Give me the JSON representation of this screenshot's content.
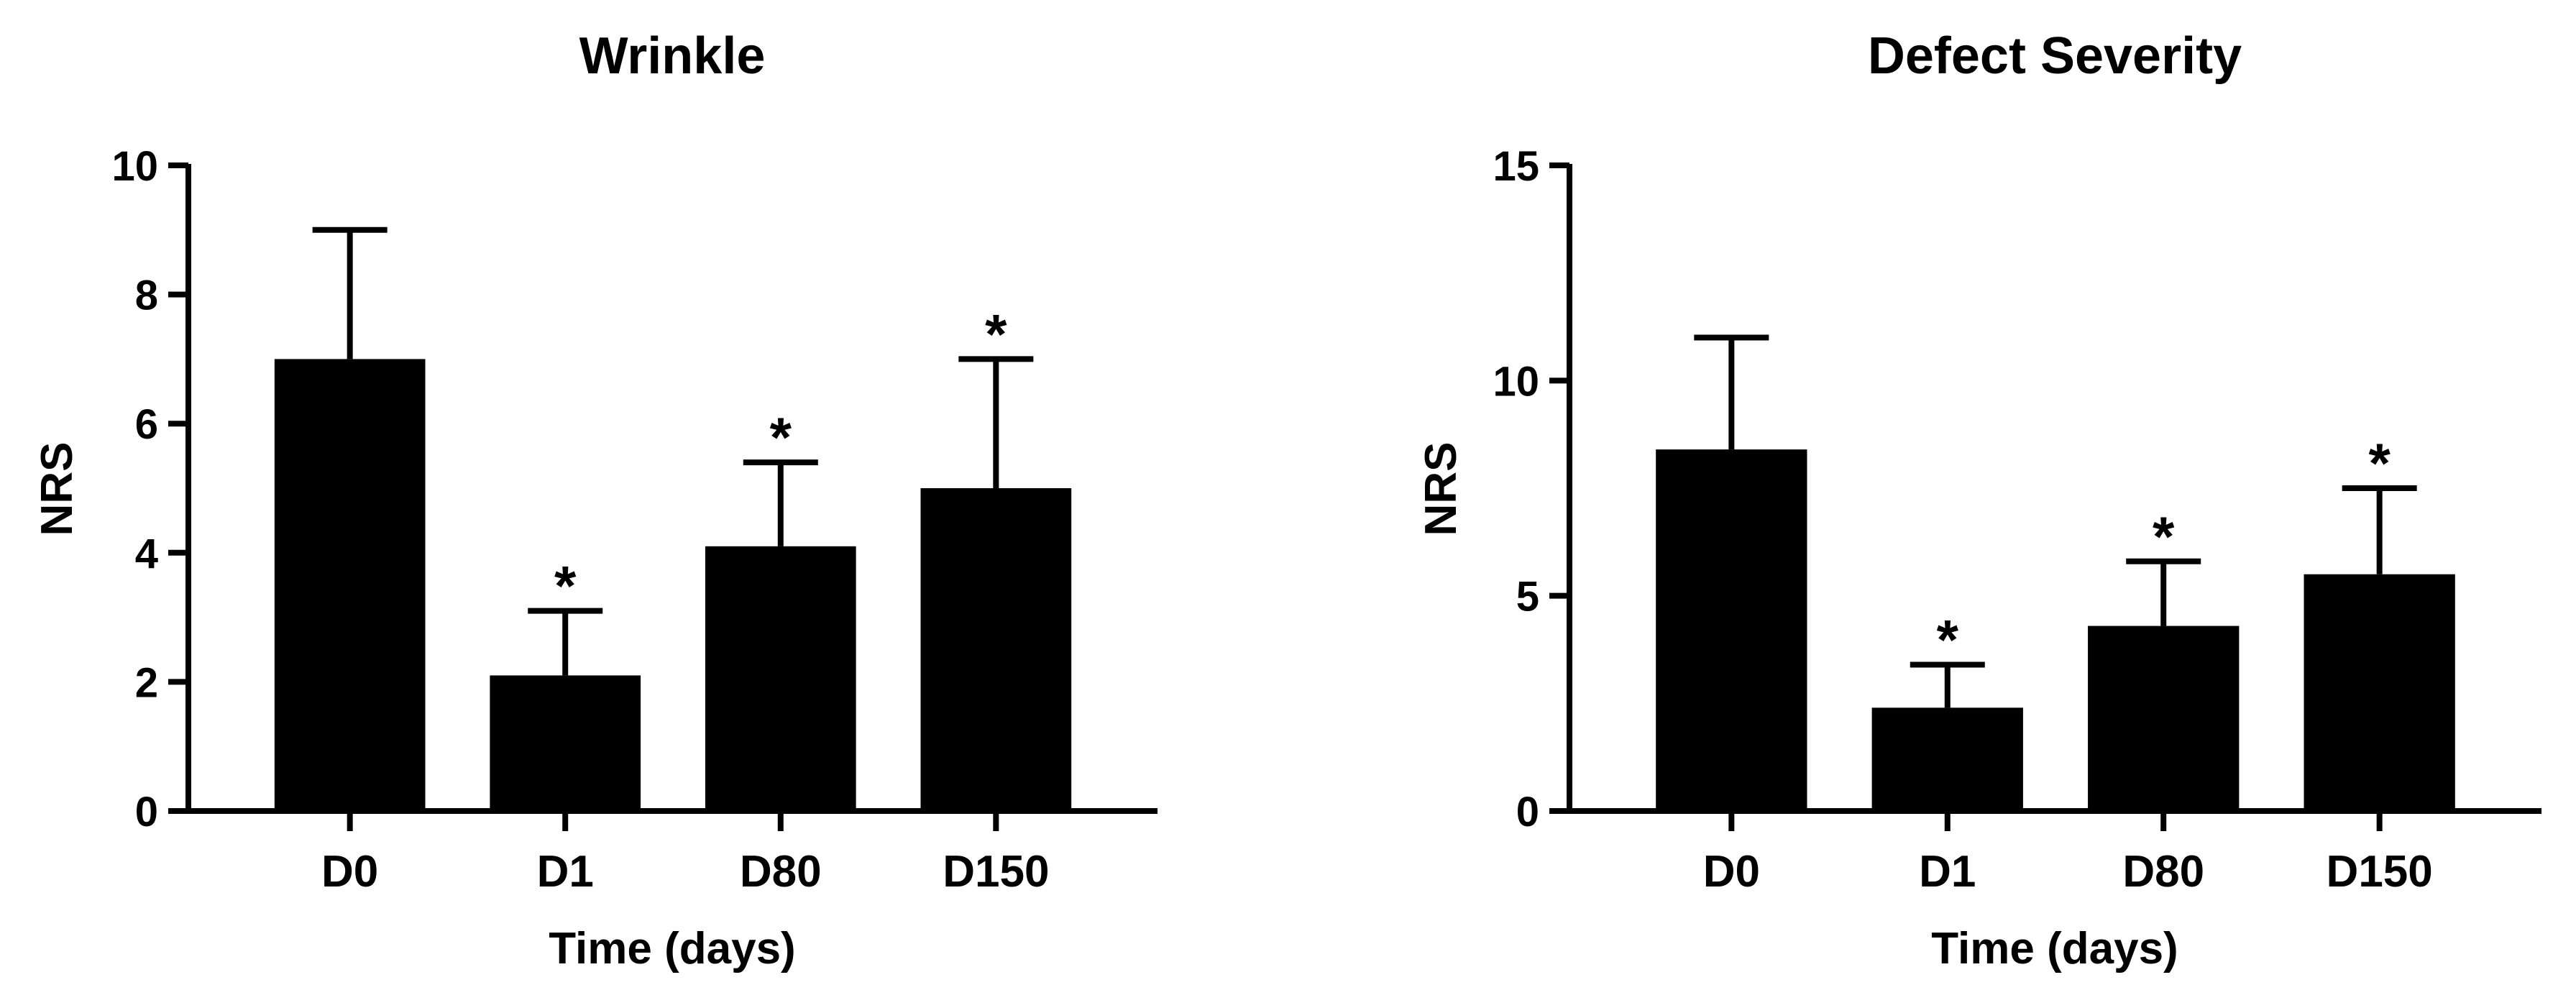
{
  "chart_data": [
    {
      "type": "bar",
      "title": "Wrinkle",
      "xlabel": "Time (days)",
      "ylabel": "NRS",
      "categories": [
        "D0",
        "D1",
        "D80",
        "D150"
      ],
      "values": [
        7.0,
        2.1,
        4.1,
        5.0
      ],
      "error_upper": [
        9.0,
        3.1,
        5.4,
        7.0
      ],
      "significance": [
        "",
        "*",
        "*",
        "*"
      ],
      "ylim": [
        0,
        10
      ],
      "yticks": [
        0,
        2,
        4,
        6,
        8,
        10
      ],
      "ytick_labels": [
        "0",
        "2",
        "4",
        "6",
        "8",
        "10"
      ],
      "bar_color": "#000000",
      "grid": false
    },
    {
      "type": "bar",
      "title": "Defect Severity",
      "xlabel": "Time (days)",
      "ylabel": "NRS",
      "categories": [
        "D0",
        "D1",
        "D80",
        "D150"
      ],
      "values": [
        8.4,
        2.4,
        4.3,
        5.5
      ],
      "error_upper": [
        11.0,
        3.4,
        5.8,
        7.5
      ],
      "significance": [
        "",
        "*",
        "*",
        "*"
      ],
      "ylim": [
        0,
        15
      ],
      "yticks": [
        0,
        5,
        10,
        15
      ],
      "ytick_labels": [
        "0",
        "5",
        "10",
        "15"
      ],
      "bar_color": "#000000",
      "grid": false
    }
  ]
}
